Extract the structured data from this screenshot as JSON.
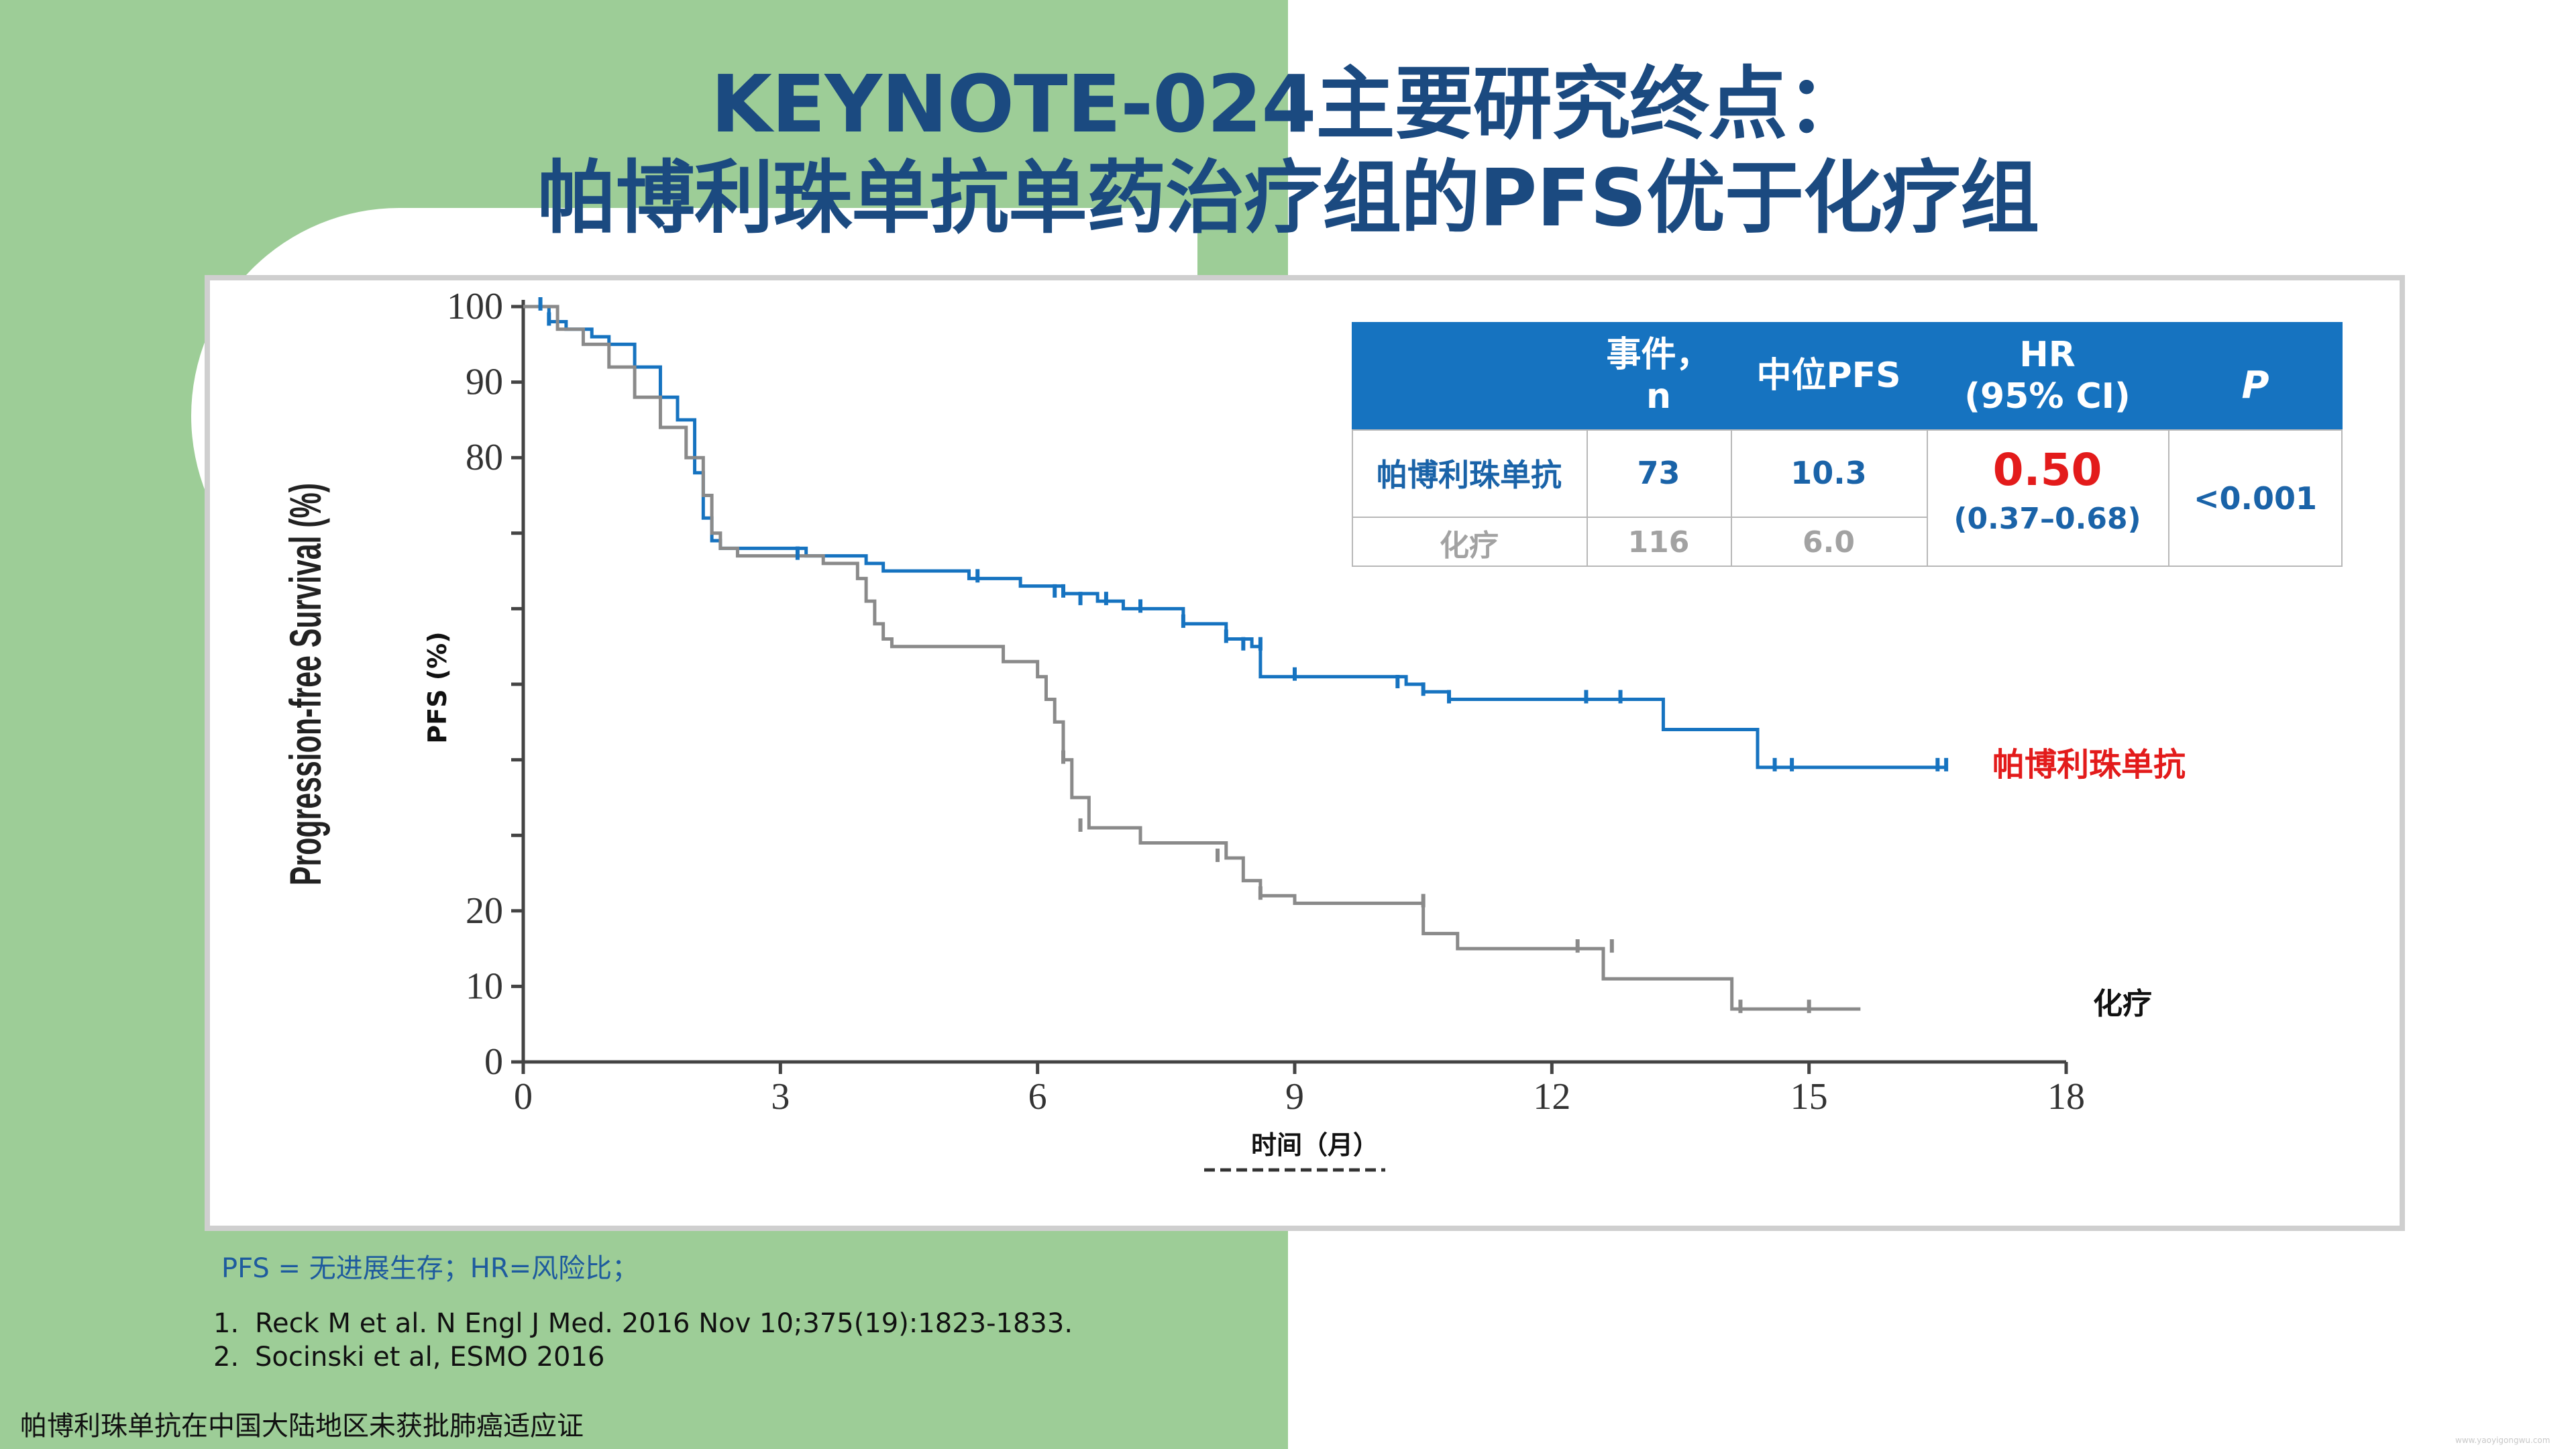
{
  "slide": {
    "title_line1": "KEYNOTE-024主要研究终点：",
    "title_line2": "帕博利珠单抗单药治疗组的PFS优于化疗组",
    "footnote": "PFS = 无进展生存；HR=风险比；",
    "references": [
      {
        "num": "1.",
        "text": "Reck M et al. N Engl J Med. 2016 Nov 10;375(19):1823-1833."
      },
      {
        "num": "2.",
        "text": "Socinski et al, ESMO 2016"
      }
    ],
    "disclaimer": "帕博利珠单抗在中国大陆地区未获批肺癌适应证",
    "watermark": "www.yaoyigongwu.com"
  },
  "table": {
    "headers": [
      "",
      "事件，\nn",
      "中位PFS",
      "HR\n(95% CI)",
      "P"
    ],
    "rows": [
      {
        "arm": "帕博利珠单抗",
        "events": "73",
        "median_pfs": "10.3"
      },
      {
        "arm": "化疗",
        "events": "116",
        "median_pfs": "6.0"
      }
    ],
    "hr": "0.50",
    "hr_ci": "(0.37–0.68)",
    "p_value": "<0.001"
  },
  "colors": {
    "pembro": "#1673c0",
    "chemo": "#8a8a8a",
    "title": "#1b4a80",
    "hr_value": "#e31b1b",
    "pembro_label": "#e31b1b",
    "background_green": "#9dcd97"
  },
  "chart_data": {
    "type": "line",
    "step": true,
    "ylabel_original": "Progression-free Survival (%)",
    "ylabel": "PFS (%)",
    "xlabel": "时间（月）",
    "xlim": [
      0,
      18
    ],
    "ylim": [
      0,
      100
    ],
    "x_ticks": [
      0,
      3,
      6,
      9,
      12,
      15,
      18
    ],
    "y_ticks": [
      0,
      10,
      20,
      30,
      40,
      50,
      60,
      70,
      80,
      90,
      100
    ],
    "y_tick_labels": [
      "0",
      "10",
      "20",
      "",
      "",
      "",
      "",
      "",
      "80",
      "90",
      "100"
    ],
    "series": [
      {
        "name": "帕博利珠单抗",
        "color": "#1673c0",
        "x": [
          0,
          0.3,
          0.5,
          0.8,
          1.0,
          1.3,
          1.6,
          1.8,
          2.0,
          2.1,
          2.2,
          2.3,
          3.3,
          4.0,
          4.2,
          5.2,
          5.8,
          6.3,
          6.7,
          7.0,
          7.7,
          8.2,
          8.5,
          8.6,
          10.3,
          10.5,
          10.8,
          12.3,
          13.3,
          14.4,
          14.7,
          16.6
        ],
        "y": [
          100,
          98,
          97,
          96,
          95,
          92,
          88,
          85,
          78,
          72,
          69,
          68,
          67,
          66,
          65,
          64,
          63,
          62,
          61,
          60,
          58,
          56,
          55,
          51,
          50,
          49,
          48,
          48,
          44,
          39,
          39,
          39
        ],
        "censor_x": [
          0.2,
          0.3,
          3.2,
          5.3,
          6.2,
          6.3,
          6.5,
          6.8,
          7.2,
          7.7,
          8.2,
          8.4,
          8.6,
          9.0,
          10.2,
          10.5,
          10.8,
          12.4,
          12.8,
          14.6,
          14.8,
          16.5,
          16.6
        ],
        "censor_y": [
          100,
          98,
          67,
          64,
          62,
          62,
          61,
          61,
          60,
          58,
          56,
          55,
          55,
          51,
          50,
          49,
          48,
          48,
          48,
          39,
          39,
          39,
          39
        ]
      },
      {
        "name": "化疗",
        "color": "#8a8a8a",
        "x": [
          0,
          0.4,
          0.7,
          1.0,
          1.3,
          1.6,
          1.9,
          2.1,
          2.2,
          2.3,
          2.5,
          3.5,
          3.9,
          4.0,
          4.1,
          4.2,
          4.3,
          5.2,
          5.6,
          6.0,
          6.1,
          6.2,
          6.3,
          6.4,
          6.6,
          7.2,
          7.8,
          8.2,
          8.4,
          8.6,
          9.0,
          10.3,
          10.5,
          10.9,
          12.3,
          12.6,
          13.9,
          14.1,
          15.0,
          15.6
        ],
        "y": [
          100,
          97,
          95,
          92,
          88,
          84,
          80,
          75,
          70,
          68,
          67,
          66,
          64,
          61,
          58,
          56,
          55,
          55,
          53,
          51,
          48,
          45,
          40,
          35,
          31,
          29,
          29,
          27,
          24,
          22,
          21,
          21,
          17,
          15,
          15,
          11,
          11,
          7,
          7,
          7
        ],
        "censor_x": [
          6.3,
          6.5,
          8.1,
          8.6,
          10.5,
          12.3,
          12.7,
          14.2,
          15.0
        ],
        "censor_y": [
          40,
          31,
          27,
          22,
          21,
          15,
          15,
          7,
          7
        ]
      }
    ]
  }
}
